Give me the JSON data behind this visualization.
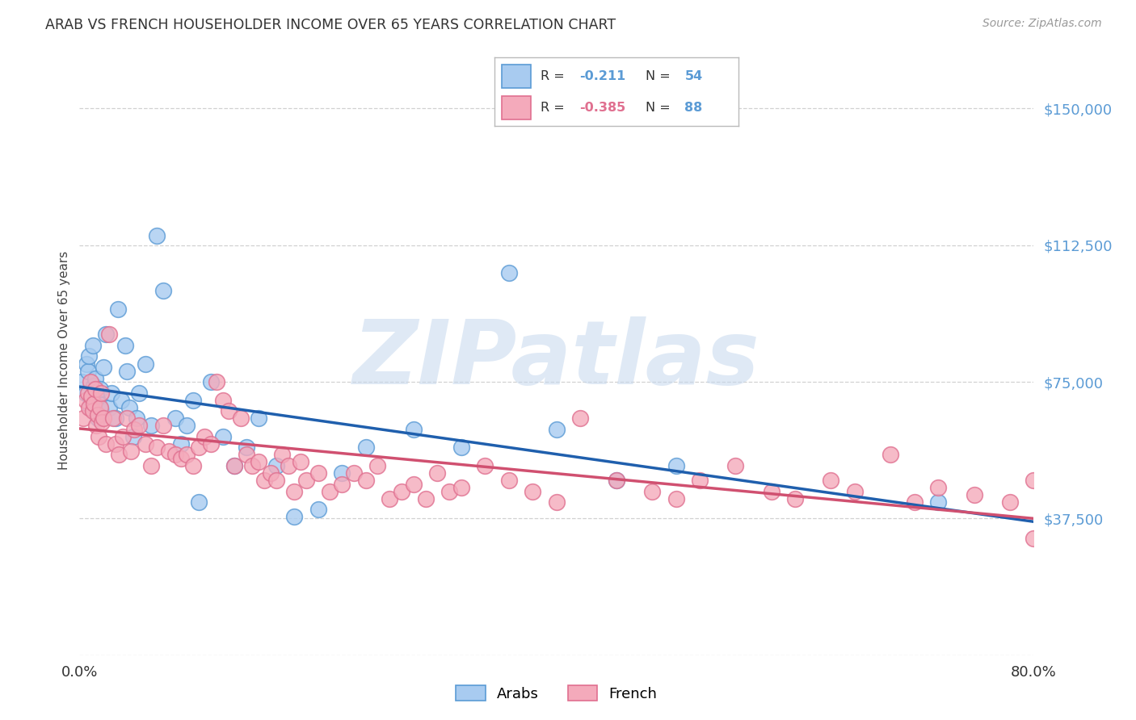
{
  "title": "ARAB VS FRENCH HOUSEHOLDER INCOME OVER 65 YEARS CORRELATION CHART",
  "source": "Source: ZipAtlas.com",
  "ylabel": "Householder Income Over 65 years",
  "xmin": 0.0,
  "xmax": 0.8,
  "ymin": 0,
  "ymax": 150000,
  "arab_color": "#A8CBF0",
  "french_color": "#F4AABB",
  "arab_edge_color": "#5B9BD5",
  "french_edge_color": "#E07090",
  "trend_arab_color": "#1F5FAD",
  "trend_french_color": "#D05070",
  "background_color": "#FFFFFF",
  "grid_color": "#CCCCCC",
  "ytick_color": "#5B9BD5",
  "watermark_color": "#C5D8EE",
  "legend_arab_label": "Arabs",
  "legend_french_label": "French",
  "arab_R": "-0.211",
  "arab_N": "54",
  "french_R": "-0.385",
  "french_N": "88",
  "arab_x": [
    0.002,
    0.005,
    0.006,
    0.007,
    0.008,
    0.009,
    0.01,
    0.011,
    0.012,
    0.013,
    0.014,
    0.015,
    0.016,
    0.017,
    0.018,
    0.02,
    0.022,
    0.025,
    0.027,
    0.03,
    0.032,
    0.035,
    0.038,
    0.04,
    0.042,
    0.045,
    0.048,
    0.05,
    0.055,
    0.06,
    0.065,
    0.07,
    0.08,
    0.085,
    0.09,
    0.095,
    0.1,
    0.11,
    0.12,
    0.13,
    0.14,
    0.15,
    0.165,
    0.18,
    0.2,
    0.22,
    0.24,
    0.28,
    0.32,
    0.36,
    0.4,
    0.45,
    0.5,
    0.72
  ],
  "arab_y": [
    75000,
    72000,
    80000,
    78000,
    82000,
    68000,
    70000,
    85000,
    74000,
    76000,
    71000,
    65000,
    69000,
    73000,
    67000,
    79000,
    88000,
    68000,
    72000,
    65000,
    95000,
    70000,
    85000,
    78000,
    68000,
    60000,
    65000,
    72000,
    80000,
    63000,
    115000,
    100000,
    65000,
    58000,
    63000,
    70000,
    42000,
    75000,
    60000,
    52000,
    57000,
    65000,
    52000,
    38000,
    40000,
    50000,
    57000,
    62000,
    57000,
    105000,
    62000,
    48000,
    52000,
    42000
  ],
  "french_x": [
    0.003,
    0.005,
    0.007,
    0.008,
    0.009,
    0.01,
    0.011,
    0.012,
    0.013,
    0.014,
    0.015,
    0.016,
    0.017,
    0.018,
    0.019,
    0.02,
    0.022,
    0.025,
    0.028,
    0.03,
    0.033,
    0.036,
    0.04,
    0.043,
    0.046,
    0.05,
    0.055,
    0.06,
    0.065,
    0.07,
    0.075,
    0.08,
    0.085,
    0.09,
    0.095,
    0.1,
    0.105,
    0.11,
    0.115,
    0.12,
    0.125,
    0.13,
    0.135,
    0.14,
    0.145,
    0.15,
    0.155,
    0.16,
    0.165,
    0.17,
    0.175,
    0.18,
    0.185,
    0.19,
    0.2,
    0.21,
    0.22,
    0.23,
    0.24,
    0.25,
    0.26,
    0.27,
    0.28,
    0.29,
    0.3,
    0.31,
    0.32,
    0.34,
    0.36,
    0.38,
    0.4,
    0.42,
    0.45,
    0.48,
    0.5,
    0.52,
    0.55,
    0.58,
    0.6,
    0.63,
    0.65,
    0.68,
    0.7,
    0.72,
    0.75,
    0.78,
    0.8,
    0.8
  ],
  "french_y": [
    65000,
    70000,
    72000,
    68000,
    75000,
    71000,
    67000,
    69000,
    73000,
    63000,
    66000,
    60000,
    68000,
    72000,
    64000,
    65000,
    58000,
    88000,
    65000,
    58000,
    55000,
    60000,
    65000,
    56000,
    62000,
    63000,
    58000,
    52000,
    57000,
    63000,
    56000,
    55000,
    54000,
    55000,
    52000,
    57000,
    60000,
    58000,
    75000,
    70000,
    67000,
    52000,
    65000,
    55000,
    52000,
    53000,
    48000,
    50000,
    48000,
    55000,
    52000,
    45000,
    53000,
    48000,
    50000,
    45000,
    47000,
    50000,
    48000,
    52000,
    43000,
    45000,
    47000,
    43000,
    50000,
    45000,
    46000,
    52000,
    48000,
    45000,
    42000,
    65000,
    48000,
    45000,
    43000,
    48000,
    52000,
    45000,
    43000,
    48000,
    45000,
    55000,
    42000,
    46000,
    44000,
    42000,
    48000,
    32000
  ]
}
